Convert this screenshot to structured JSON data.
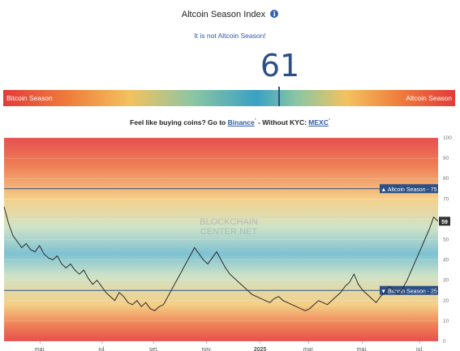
{
  "header": {
    "title": "Altcoin Season Index",
    "info_icon": "info-icon",
    "status": "It is not Altcoin Season!",
    "index_value": "61"
  },
  "gauge": {
    "left_label": "Bitcoin Season",
    "right_label": "Altcoin Season",
    "value": 61
  },
  "promo": {
    "prefix": "Feel like buying coins? Go to",
    "link1": "Binance",
    "middle": "- Without KYC:",
    "link2": "MEXC",
    "sup": "*"
  },
  "chart_data": {
    "type": "line",
    "ylim": [
      0,
      100
    ],
    "yticks": [
      0,
      10,
      20,
      30,
      40,
      50,
      60,
      70,
      80,
      90,
      100
    ],
    "xticks": [
      {
        "label": "mai.",
        "t": 0.083
      },
      {
        "label": "jul.",
        "t": 0.226
      },
      {
        "label": "set.",
        "t": 0.345
      },
      {
        "label": "nov.",
        "t": 0.467
      },
      {
        "label": "2025",
        "t": 0.59,
        "bold": true
      },
      {
        "label": "mar.",
        "t": 0.702
      },
      {
        "label": "mai.",
        "t": 0.825
      },
      {
        "label": "jul.",
        "t": 0.958
      }
    ],
    "thresholds": [
      {
        "label": "▲ Altcoin Season - 75",
        "value": 75
      },
      {
        "label": "▼ Bitcoin Season - 25",
        "value": 25
      }
    ],
    "last_value_label": "59",
    "watermark": [
      "BLOCKCHAIN",
      "CENTER.NET"
    ],
    "series": [
      {
        "values": [
          66,
          58,
          52,
          49,
          46,
          48,
          45,
          44,
          47,
          43,
          41,
          40,
          42,
          38,
          36,
          38,
          35,
          33,
          35,
          31,
          28,
          30,
          27,
          24,
          22,
          20,
          24,
          22,
          19,
          18,
          20,
          17,
          19,
          16,
          15,
          17,
          18,
          22,
          26,
          30,
          34,
          38,
          42,
          46,
          43,
          40,
          38,
          41,
          44,
          40,
          36,
          33,
          31,
          29,
          27,
          25,
          23,
          22,
          21,
          20,
          19,
          21,
          22,
          20,
          19,
          18,
          17,
          16,
          15,
          16,
          18,
          20,
          19,
          18,
          20,
          22,
          24,
          27,
          29,
          33,
          28,
          25,
          23,
          21,
          19,
          22,
          24,
          27,
          25,
          23,
          26,
          30,
          35,
          40,
          45,
          50,
          55,
          61,
          59
        ]
      }
    ]
  }
}
